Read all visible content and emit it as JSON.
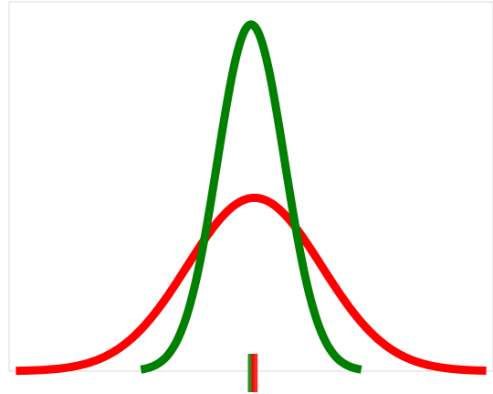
{
  "chart_data": {
    "type": "line",
    "title": "",
    "xlabel": "",
    "ylabel": "",
    "xlim": [
      -3.6,
      3.6
    ],
    "ylim": [
      0,
      0.85
    ],
    "grid": false,
    "legend": "none",
    "series": [
      {
        "color": "#008000",
        "shape": "normal-density",
        "mean": 0.0,
        "sd": 0.5,
        "x_range": [
          -1.64,
          1.64
        ],
        "mean_marker": 0.0
      },
      {
        "color": "#ff0000",
        "shape": "normal-density",
        "mean": 0.05,
        "sd": 1.0,
        "x_range": [
          -3.5,
          3.5
        ],
        "mean_marker": 0.05
      }
    ]
  }
}
